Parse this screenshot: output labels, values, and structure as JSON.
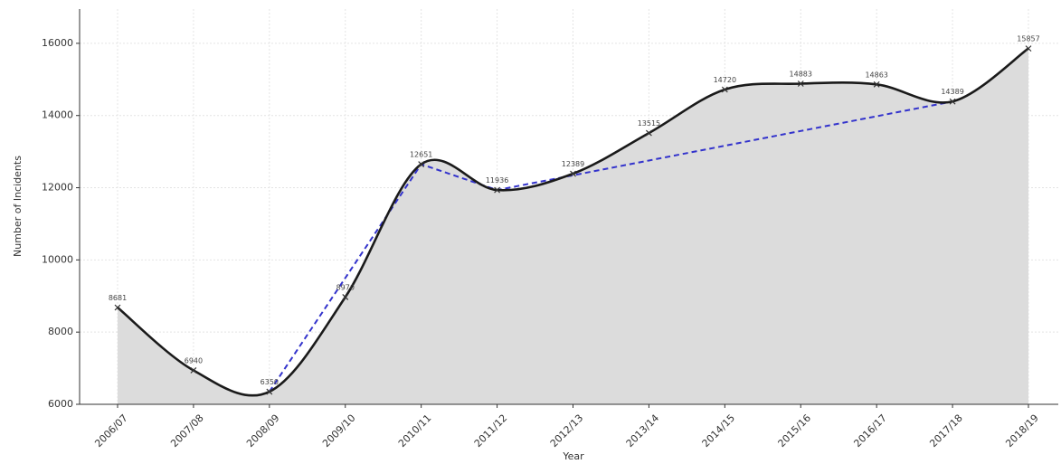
{
  "chart_data": {
    "type": "line",
    "x_label": "Year",
    "y_label": "Number of Incidents",
    "categories": [
      "2006/07",
      "2007/08",
      "2008/09",
      "2009/10",
      "2010/11",
      "2011/12",
      "2012/13",
      "2013/14",
      "2014/15",
      "2015/16",
      "2016/17",
      "2017/18",
      "2018/19"
    ],
    "series": [
      {
        "color": "#1a1a1a",
        "values": [
          8681,
          6940,
          6350,
          8970,
          12651,
          11936,
          12389,
          13515,
          14720,
          14883,
          14863,
          14389,
          15857
        ]
      },
      {
        "color": "#3333cc",
        "values": [
          null,
          null,
          6350,
          9500,
          12651,
          11936,
          12345,
          12754,
          13163,
          13572,
          13980,
          14389,
          null
        ]
      }
    ],
    "area_color": "#dcdcdc",
    "ylim": [
      6000,
      16950
    ],
    "yticks": [
      6000,
      8000,
      10000,
      12000,
      14000,
      16000
    ],
    "grid": true
  }
}
